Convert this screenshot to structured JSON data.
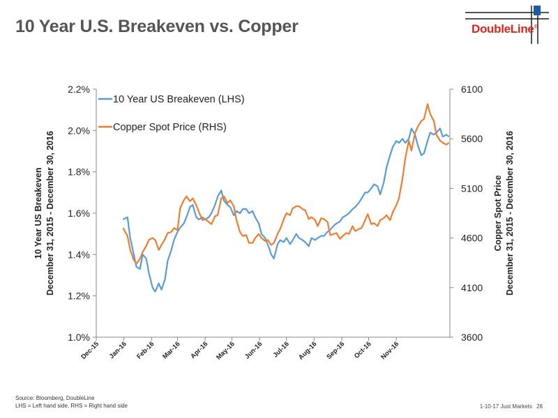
{
  "header": {
    "title": "10 Year U.S. Breakeven vs. Copper",
    "logo_text": "DoubleLine",
    "logo_mark": "®"
  },
  "footer": {
    "source": "Source: Bloomberg, DoubleLine",
    "note": "LHS = Left hand side, RHS = Right hand side",
    "deck": "1-10-17 Just Markets",
    "page": "28"
  },
  "colors": {
    "breakeven": "#5b9bd5",
    "copper": "#ed7d31",
    "brand_red": "#e2231a",
    "title_gray": "#555555"
  },
  "chart_data": {
    "type": "line",
    "title": "",
    "x_type": "date",
    "x_range": [
      "2015-12-31",
      "2016-12-30"
    ],
    "x_ticks": [
      "Dec-15",
      "Jan-16",
      "Feb-16",
      "Mar-16",
      "Apr-16",
      "May-16",
      "Jun-16",
      "Jul-16",
      "Aug-16",
      "Sep-16",
      "Oct-16",
      "Nov-16"
    ],
    "x_tick_dates": [
      "2015-12-01",
      "2016-01-01",
      "2016-02-01",
      "2016-03-01",
      "2016-04-01",
      "2016-05-01",
      "2016-06-01",
      "2016-07-01",
      "2016-08-01",
      "2016-09-01",
      "2016-10-01",
      "2016-11-01"
    ],
    "ylabel_left": [
      "10 Year US Breakeven",
      "December 31, 2015 - December 30, 2016"
    ],
    "ylabel_right": [
      "Copper Spot Price",
      "December 31, 2015 - December 30, 2016"
    ],
    "ylim_left": [
      1.0,
      2.2
    ],
    "yticks_left": [
      "1.0%",
      "1.2%",
      "1.4%",
      "1.6%",
      "1.8%",
      "2.0%",
      "2.2%"
    ],
    "ylim_right": [
      3600,
      6100
    ],
    "yticks_right": [
      "3600",
      "4100",
      "4600",
      "5100",
      "5600",
      "6100"
    ],
    "grid": false,
    "legend_position": "top-left",
    "series": [
      {
        "name": "10 Year US Breakeven (LHS)",
        "axis": "left",
        "color": "#5b9bd5",
        "points": [
          [
            "2015-12-31",
            1.57
          ],
          [
            "2016-01-05",
            1.58
          ],
          [
            "2016-01-08",
            1.48
          ],
          [
            "2016-01-12",
            1.4
          ],
          [
            "2016-01-15",
            1.34
          ],
          [
            "2016-01-19",
            1.33
          ],
          [
            "2016-01-22",
            1.4
          ],
          [
            "2016-01-26",
            1.38
          ],
          [
            "2016-01-29",
            1.31
          ],
          [
            "2016-02-02",
            1.24
          ],
          [
            "2016-02-05",
            1.22
          ],
          [
            "2016-02-09",
            1.26
          ],
          [
            "2016-02-12",
            1.23
          ],
          [
            "2016-02-16",
            1.28
          ],
          [
            "2016-02-19",
            1.37
          ],
          [
            "2016-02-23",
            1.42
          ],
          [
            "2016-02-26",
            1.47
          ],
          [
            "2016-03-01",
            1.51
          ],
          [
            "2016-03-04",
            1.53
          ],
          [
            "2016-03-08",
            1.55
          ],
          [
            "2016-03-11",
            1.58
          ],
          [
            "2016-03-15",
            1.63
          ],
          [
            "2016-03-18",
            1.64
          ],
          [
            "2016-03-22",
            1.58
          ],
          [
            "2016-03-25",
            1.57
          ],
          [
            "2016-03-29",
            1.58
          ],
          [
            "2016-04-01",
            1.57
          ],
          [
            "2016-04-05",
            1.58
          ],
          [
            "2016-04-08",
            1.6
          ],
          [
            "2016-04-12",
            1.64
          ],
          [
            "2016-04-15",
            1.68
          ],
          [
            "2016-04-19",
            1.71
          ],
          [
            "2016-04-22",
            1.66
          ],
          [
            "2016-04-26",
            1.64
          ],
          [
            "2016-04-29",
            1.63
          ],
          [
            "2016-05-03",
            1.59
          ],
          [
            "2016-05-06",
            1.61
          ],
          [
            "2016-05-10",
            1.6
          ],
          [
            "2016-05-13",
            1.62
          ],
          [
            "2016-05-17",
            1.62
          ],
          [
            "2016-05-20",
            1.6
          ],
          [
            "2016-05-24",
            1.61
          ],
          [
            "2016-05-27",
            1.58
          ],
          [
            "2016-05-31",
            1.55
          ],
          [
            "2016-06-03",
            1.5
          ],
          [
            "2016-06-07",
            1.48
          ],
          [
            "2016-06-10",
            1.45
          ],
          [
            "2016-06-14",
            1.4
          ],
          [
            "2016-06-17",
            1.38
          ],
          [
            "2016-06-21",
            1.45
          ],
          [
            "2016-06-24",
            1.47
          ],
          [
            "2016-06-28",
            1.46
          ],
          [
            "2016-07-01",
            1.48
          ],
          [
            "2016-07-05",
            1.45
          ],
          [
            "2016-07-08",
            1.47
          ],
          [
            "2016-07-12",
            1.5
          ],
          [
            "2016-07-15",
            1.48
          ],
          [
            "2016-07-19",
            1.47
          ],
          [
            "2016-07-22",
            1.46
          ],
          [
            "2016-07-26",
            1.44
          ],
          [
            "2016-07-29",
            1.48
          ],
          [
            "2016-08-02",
            1.47
          ],
          [
            "2016-08-05",
            1.48
          ],
          [
            "2016-08-09",
            1.49
          ],
          [
            "2016-08-12",
            1.49
          ],
          [
            "2016-08-16",
            1.51
          ],
          [
            "2016-08-19",
            1.52
          ],
          [
            "2016-08-23",
            1.54
          ],
          [
            "2016-08-26",
            1.55
          ],
          [
            "2016-08-30",
            1.56
          ],
          [
            "2016-09-02",
            1.58
          ],
          [
            "2016-09-06",
            1.59
          ],
          [
            "2016-09-09",
            1.6
          ],
          [
            "2016-09-13",
            1.62
          ],
          [
            "2016-09-16",
            1.63
          ],
          [
            "2016-09-20",
            1.65
          ],
          [
            "2016-09-23",
            1.67
          ],
          [
            "2016-09-27",
            1.7
          ],
          [
            "2016-09-30",
            1.7
          ],
          [
            "2016-10-04",
            1.72
          ],
          [
            "2016-10-07",
            1.74
          ],
          [
            "2016-10-11",
            1.73
          ],
          [
            "2016-10-14",
            1.69
          ],
          [
            "2016-10-18",
            1.75
          ],
          [
            "2016-10-21",
            1.82
          ],
          [
            "2016-10-25",
            1.88
          ],
          [
            "2016-10-28",
            1.92
          ],
          [
            "2016-11-01",
            1.95
          ],
          [
            "2016-11-04",
            1.94
          ],
          [
            "2016-11-08",
            1.96
          ],
          [
            "2016-11-11",
            1.94
          ],
          [
            "2016-11-15",
            1.96
          ],
          [
            "2016-11-18",
            2.01
          ],
          [
            "2016-11-22",
            1.98
          ],
          [
            "2016-11-25",
            1.93
          ],
          [
            "2016-11-29",
            1.88
          ],
          [
            "2016-12-02",
            1.89
          ],
          [
            "2016-12-06",
            1.95
          ],
          [
            "2016-12-09",
            1.99
          ],
          [
            "2016-12-13",
            1.98
          ],
          [
            "2016-12-16",
            1.99
          ],
          [
            "2016-12-20",
            2.01
          ],
          [
            "2016-12-23",
            1.97
          ],
          [
            "2016-12-27",
            1.98
          ],
          [
            "2016-12-30",
            1.97
          ]
        ]
      },
      {
        "name": "Copper Spot Price (RHS)",
        "axis": "right",
        "color": "#ed7d31",
        "points": [
          [
            "2015-12-31",
            4702
          ],
          [
            "2016-01-05",
            4620
          ],
          [
            "2016-01-08",
            4480
          ],
          [
            "2016-01-12",
            4380
          ],
          [
            "2016-01-15",
            4340
          ],
          [
            "2016-01-19",
            4390
          ],
          [
            "2016-01-22",
            4460
          ],
          [
            "2016-01-26",
            4520
          ],
          [
            "2016-01-29",
            4580
          ],
          [
            "2016-02-02",
            4600
          ],
          [
            "2016-02-05",
            4580
          ],
          [
            "2016-02-09",
            4480
          ],
          [
            "2016-02-12",
            4530
          ],
          [
            "2016-02-16",
            4590
          ],
          [
            "2016-02-19",
            4650
          ],
          [
            "2016-02-23",
            4660
          ],
          [
            "2016-02-26",
            4700
          ],
          [
            "2016-03-01",
            4680
          ],
          [
            "2016-03-04",
            4900
          ],
          [
            "2016-03-08",
            4980
          ],
          [
            "2016-03-11",
            5020
          ],
          [
            "2016-03-15",
            4970
          ],
          [
            "2016-03-18",
            5000
          ],
          [
            "2016-03-22",
            4930
          ],
          [
            "2016-03-25",
            4860
          ],
          [
            "2016-03-29",
            4780
          ],
          [
            "2016-04-01",
            4790
          ],
          [
            "2016-04-05",
            4760
          ],
          [
            "2016-04-08",
            4740
          ],
          [
            "2016-04-12",
            4820
          ],
          [
            "2016-04-15",
            4830
          ],
          [
            "2016-04-19",
            5000
          ],
          [
            "2016-04-22",
            5020
          ],
          [
            "2016-04-26",
            4950
          ],
          [
            "2016-04-29",
            4980
          ],
          [
            "2016-05-03",
            4920
          ],
          [
            "2016-05-06",
            4780
          ],
          [
            "2016-05-10",
            4660
          ],
          [
            "2016-05-13",
            4620
          ],
          [
            "2016-05-17",
            4630
          ],
          [
            "2016-05-20",
            4550
          ],
          [
            "2016-05-24",
            4550
          ],
          [
            "2016-05-27",
            4600
          ],
          [
            "2016-05-31",
            4640
          ],
          [
            "2016-06-03",
            4600
          ],
          [
            "2016-06-07",
            4570
          ],
          [
            "2016-06-10",
            4580
          ],
          [
            "2016-06-14",
            4530
          ],
          [
            "2016-06-17",
            4550
          ],
          [
            "2016-06-21",
            4640
          ],
          [
            "2016-06-24",
            4690
          ],
          [
            "2016-06-28",
            4790
          ],
          [
            "2016-07-01",
            4850
          ],
          [
            "2016-07-05",
            4830
          ],
          [
            "2016-07-08",
            4900
          ],
          [
            "2016-07-12",
            4920
          ],
          [
            "2016-07-15",
            4920
          ],
          [
            "2016-07-19",
            4890
          ],
          [
            "2016-07-22",
            4880
          ],
          [
            "2016-07-26",
            4790
          ],
          [
            "2016-07-29",
            4810
          ],
          [
            "2016-08-02",
            4780
          ],
          [
            "2016-08-05",
            4720
          ],
          [
            "2016-08-09",
            4800
          ],
          [
            "2016-08-12",
            4790
          ],
          [
            "2016-08-16",
            4760
          ],
          [
            "2016-08-19",
            4630
          ],
          [
            "2016-08-23",
            4640
          ],
          [
            "2016-08-26",
            4650
          ],
          [
            "2016-08-30",
            4590
          ],
          [
            "2016-09-02",
            4620
          ],
          [
            "2016-09-06",
            4650
          ],
          [
            "2016-09-09",
            4640
          ],
          [
            "2016-09-13",
            4720
          ],
          [
            "2016-09-16",
            4670
          ],
          [
            "2016-09-20",
            4690
          ],
          [
            "2016-09-23",
            4700
          ],
          [
            "2016-09-27",
            4780
          ],
          [
            "2016-09-30",
            4840
          ],
          [
            "2016-10-04",
            4740
          ],
          [
            "2016-10-07",
            4750
          ],
          [
            "2016-10-11",
            4720
          ],
          [
            "2016-10-14",
            4780
          ],
          [
            "2016-10-18",
            4800
          ],
          [
            "2016-10-21",
            4830
          ],
          [
            "2016-10-25",
            4780
          ],
          [
            "2016-10-28",
            4860
          ],
          [
            "2016-11-01",
            4930
          ],
          [
            "2016-11-04",
            5000
          ],
          [
            "2016-11-08",
            5200
          ],
          [
            "2016-11-11",
            5400
          ],
          [
            "2016-11-15",
            5580
          ],
          [
            "2016-11-18",
            5480
          ],
          [
            "2016-11-22",
            5660
          ],
          [
            "2016-11-25",
            5720
          ],
          [
            "2016-11-29",
            5780
          ],
          [
            "2016-12-02",
            5800
          ],
          [
            "2016-12-06",
            5950
          ],
          [
            "2016-12-09",
            5850
          ],
          [
            "2016-12-13",
            5780
          ],
          [
            "2016-12-16",
            5640
          ],
          [
            "2016-12-20",
            5580
          ],
          [
            "2016-12-23",
            5560
          ],
          [
            "2016-12-27",
            5540
          ],
          [
            "2016-12-30",
            5560
          ]
        ]
      }
    ]
  }
}
